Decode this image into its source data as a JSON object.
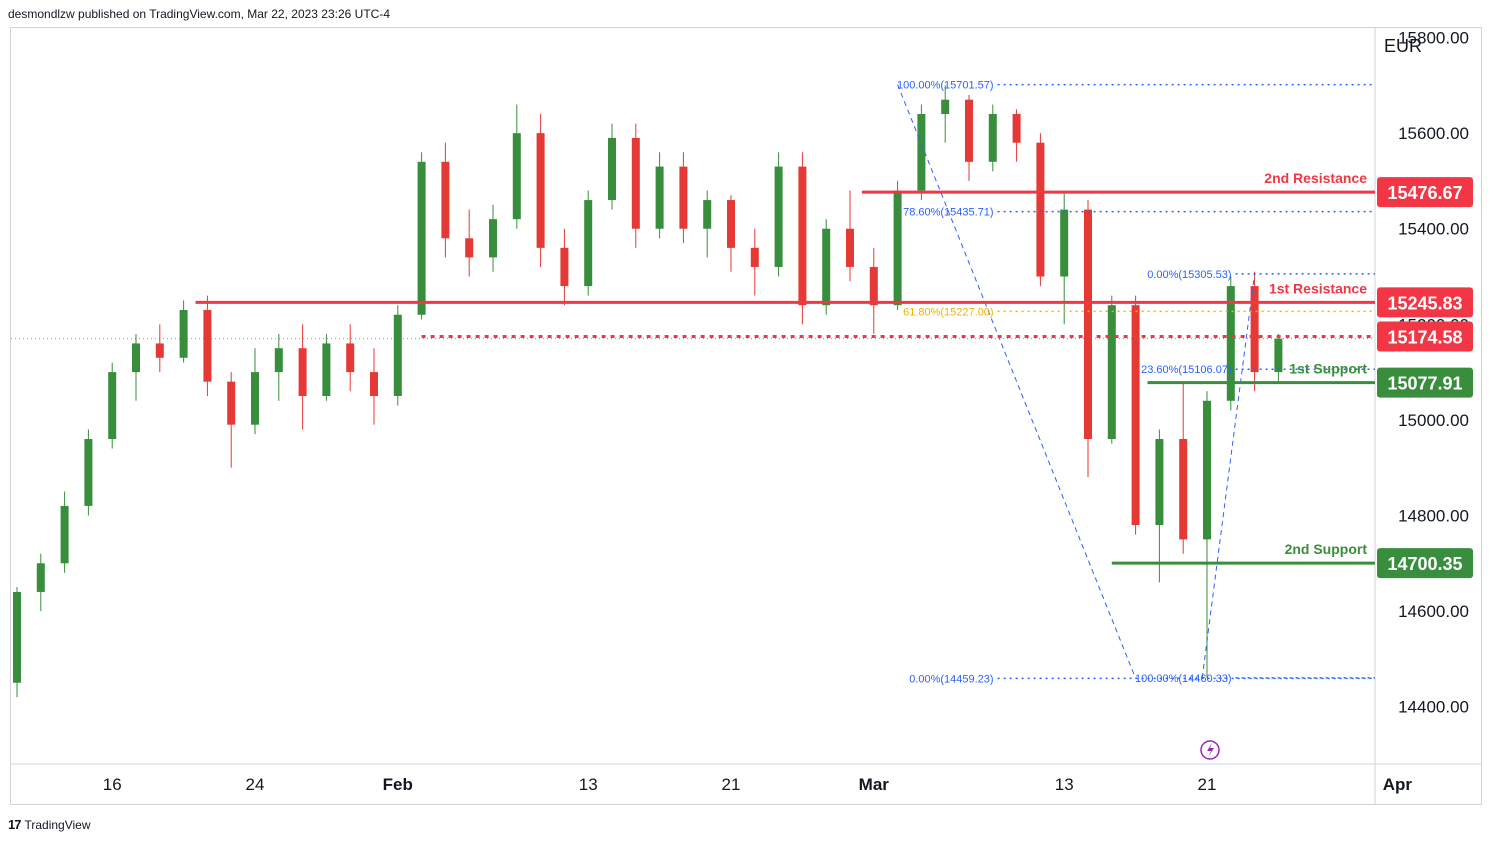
{
  "header": {
    "publisher_text": "desmondlzw published on TradingView.com, Mar 22, 2023 23:26 UTC-4"
  },
  "footer": {
    "brand": "TradingView",
    "logo_glyph": "17"
  },
  "colors": {
    "bull": "#388e3c",
    "bear": "#e53935",
    "resistance": "#f23645",
    "support": "#388e3c",
    "fib": "#2962ff",
    "fib_gold": "#f0b400",
    "axis_text": "#131722"
  },
  "chart_data": {
    "type": "candlestick",
    "currency_label": "EUR",
    "ylim": [
      14280,
      15820
    ],
    "y_ticks": [
      {
        "label": "15800.00",
        "value": 15800
      },
      {
        "label": "15600.00",
        "value": 15600
      },
      {
        "label": "15400.00",
        "value": 15400
      },
      {
        "label": "15200.00",
        "value": 15200
      },
      {
        "label": "15000.00",
        "value": 15000
      },
      {
        "label": "14800.00",
        "value": 14800
      },
      {
        "label": "14600.00",
        "value": 14600
      },
      {
        "label": "14400.00",
        "value": 14400
      }
    ],
    "x_ticks": [
      {
        "label": "16",
        "index": 4,
        "bold": false
      },
      {
        "label": "24",
        "index": 10,
        "bold": false
      },
      {
        "label": "Feb",
        "index": 16,
        "bold": true
      },
      {
        "label": "13",
        "index": 24,
        "bold": false
      },
      {
        "label": "21",
        "index": 30,
        "bold": false
      },
      {
        "label": "Mar",
        "index": 36,
        "bold": true
      },
      {
        "label": "13",
        "index": 44,
        "bold": false
      },
      {
        "label": "21",
        "index": 50,
        "bold": false
      },
      {
        "label": "Apr",
        "index": 58,
        "bold": true
      }
    ],
    "levels": [
      {
        "label": "2nd Resistance",
        "price_label": "15476.67",
        "value": 15476.67,
        "kind": "resistance",
        "start_index": 35.5,
        "style": "solid"
      },
      {
        "label": "1st Resistance",
        "price_label": "15245.83",
        "value": 15245.83,
        "kind": "resistance",
        "start_index": 7.5,
        "style": "solid"
      },
      {
        "label": "",
        "price_label": "15174.58",
        "value": 15174.58,
        "kind": "resistance",
        "start_index": 17,
        "style": "dashed"
      },
      {
        "label": "1st Support",
        "price_label": "15077.91",
        "value": 15077.91,
        "kind": "support",
        "start_index": 47.5,
        "style": "solid"
      },
      {
        "label": "2nd Support",
        "price_label": "14700.35",
        "value": 14700.35,
        "kind": "support",
        "start_index": 46,
        "style": "solid"
      }
    ],
    "fib_labels": [
      {
        "text": "100.00%(15701.57)",
        "value": 15701.57,
        "index": 37,
        "color": "fib"
      },
      {
        "text": "78.60%(15435.71)",
        "value": 15435.71,
        "index": 37,
        "color": "fib"
      },
      {
        "text": "61.80%(15227.00)",
        "value": 15227.0,
        "index": 37,
        "color": "fib_gold"
      },
      {
        "text": "0.00%(14459.23)",
        "value": 14459.23,
        "index": 37,
        "color": "fib"
      },
      {
        "text": "0.00%(15305.53)",
        "value": 15305.53,
        "index": 47,
        "color": "fib"
      },
      {
        "text": "23.60%(15106.07)",
        "value": 15106.07,
        "index": 47,
        "color": "fib"
      },
      {
        "text": "100.00%(14460.33)",
        "value": 14460.33,
        "index": 47,
        "color": "fib"
      }
    ],
    "candles": [
      [
        14450,
        14650,
        14420,
        14640
      ],
      [
        14640,
        14720,
        14600,
        14700
      ],
      [
        14700,
        14850,
        14680,
        14820
      ],
      [
        14820,
        14980,
        14800,
        14960
      ],
      [
        14960,
        15120,
        14940,
        15100
      ],
      [
        15100,
        15180,
        15040,
        15160
      ],
      [
        15160,
        15200,
        15100,
        15130
      ],
      [
        15130,
        15250,
        15120,
        15230
      ],
      [
        15230,
        15260,
        15050,
        15080
      ],
      [
        15080,
        15100,
        14900,
        14990
      ],
      [
        14990,
        15150,
        14970,
        15100
      ],
      [
        15100,
        15180,
        15040,
        15150
      ],
      [
        15150,
        15200,
        14980,
        15050
      ],
      [
        15050,
        15180,
        15040,
        15160
      ],
      [
        15160,
        15200,
        15060,
        15100
      ],
      [
        15100,
        15150,
        14990,
        15050
      ],
      [
        15050,
        15240,
        15030,
        15220
      ],
      [
        15220,
        15560,
        15210,
        15540
      ],
      [
        15540,
        15580,
        15340,
        15380
      ],
      [
        15380,
        15440,
        15300,
        15340
      ],
      [
        15340,
        15450,
        15310,
        15420
      ],
      [
        15420,
        15660,
        15400,
        15600
      ],
      [
        15600,
        15640,
        15320,
        15360
      ],
      [
        15360,
        15400,
        15240,
        15280
      ],
      [
        15280,
        15480,
        15260,
        15460
      ],
      [
        15460,
        15620,
        15440,
        15590
      ],
      [
        15590,
        15620,
        15360,
        15400
      ],
      [
        15400,
        15560,
        15380,
        15530
      ],
      [
        15530,
        15560,
        15370,
        15400
      ],
      [
        15400,
        15480,
        15340,
        15460
      ],
      [
        15460,
        15470,
        15310,
        15360
      ],
      [
        15360,
        15400,
        15260,
        15320
      ],
      [
        15320,
        15560,
        15300,
        15530
      ],
      [
        15530,
        15560,
        15200,
        15240
      ],
      [
        15240,
        15420,
        15220,
        15400
      ],
      [
        15400,
        15480,
        15290,
        15320
      ],
      [
        15320,
        15360,
        15180,
        15240
      ],
      [
        15240,
        15500,
        15230,
        15480
      ],
      [
        15480,
        15660,
        15460,
        15640
      ],
      [
        15640,
        15700,
        15580,
        15670
      ],
      [
        15670,
        15680,
        15500,
        15540
      ],
      [
        15540,
        15660,
        15520,
        15640
      ],
      [
        15640,
        15650,
        15540,
        15580
      ],
      [
        15580,
        15600,
        15280,
        15300
      ],
      [
        15300,
        15480,
        15200,
        15440
      ],
      [
        15440,
        15460,
        14880,
        14960
      ],
      [
        14960,
        15260,
        14950,
        15240
      ],
      [
        15240,
        15260,
        14760,
        14780
      ],
      [
        14780,
        14980,
        14660,
        14960
      ],
      [
        14960,
        15080,
        14720,
        14750
      ],
      [
        14750,
        15060,
        14460,
        15040
      ],
      [
        15040,
        15300,
        15020,
        15280
      ],
      [
        15280,
        15310,
        15060,
        15100
      ],
      [
        15100,
        15180,
        15080,
        15170
      ]
    ]
  }
}
